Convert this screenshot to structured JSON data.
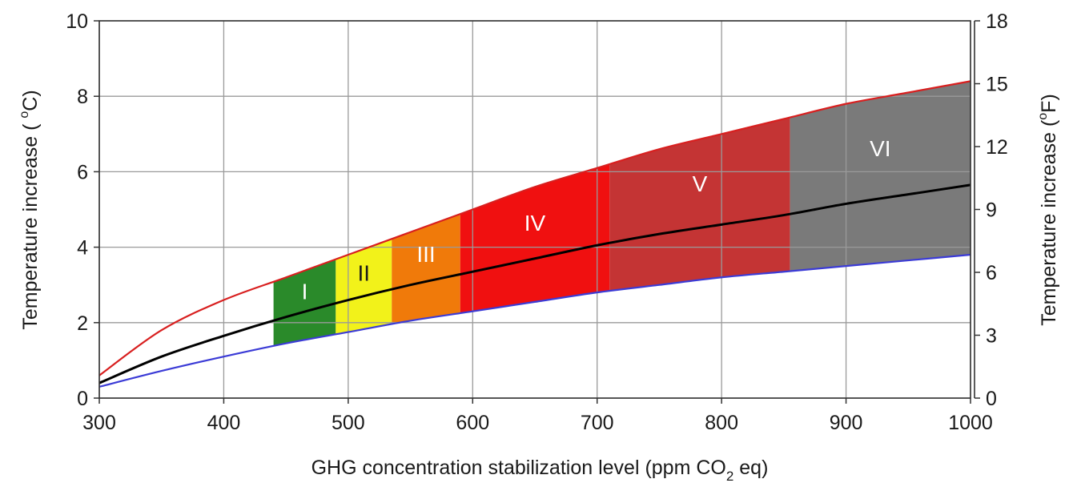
{
  "chart_data": {
    "type": "area",
    "xlabel_parts": [
      "GHG concentration stabilization level (ppm CO",
      "2",
      " eq)"
    ],
    "ylabel_left_parts": [
      "Temperature increase ( ",
      "o",
      "C)"
    ],
    "ylabel_right_parts": [
      "Temperature increase (",
      "o",
      "F)"
    ],
    "xlim": [
      300,
      1000
    ],
    "ylim_left": [
      0,
      10
    ],
    "ylim_right": [
      0,
      18
    ],
    "x_ticks": [
      300,
      400,
      500,
      600,
      700,
      800,
      900,
      1000
    ],
    "y_ticks_left": [
      0,
      2,
      4,
      6,
      8,
      10
    ],
    "y_ticks_right": [
      0,
      3,
      6,
      9,
      12,
      15,
      18
    ],
    "grid": true,
    "x": [
      300,
      350,
      400,
      450,
      500,
      550,
      600,
      650,
      700,
      750,
      800,
      850,
      900,
      950,
      1000
    ],
    "series": [
      {
        "values": [
          0.6,
          1.8,
          2.6,
          3.2,
          3.8,
          4.4,
          5.0,
          5.6,
          6.1,
          6.6,
          7.0,
          7.4,
          7.8,
          8.1,
          8.4
        ],
        "color": "#d81f1f"
      },
      {
        "values": [
          0.4,
          1.1,
          1.65,
          2.15,
          2.6,
          3.0,
          3.35,
          3.7,
          4.05,
          4.35,
          4.6,
          4.85,
          5.15,
          5.4,
          5.65
        ],
        "color": "#000000"
      },
      {
        "values": [
          0.3,
          0.72,
          1.1,
          1.45,
          1.75,
          2.05,
          2.3,
          2.55,
          2.8,
          3.0,
          3.2,
          3.35,
          3.5,
          3.65,
          3.8
        ],
        "color": "#3b3bd6"
      }
    ],
    "bands": [
      {
        "label": "I",
        "x_start": 440,
        "x_end": 490,
        "color": "#2a8a2a",
        "label_color": "#ffffff"
      },
      {
        "label": "II",
        "x_start": 490,
        "x_end": 535,
        "color": "#f2f21a",
        "label_color": "#1a1a1a"
      },
      {
        "label": "III",
        "x_start": 535,
        "x_end": 590,
        "color": "#f07a0a",
        "label_color": "#ffffff"
      },
      {
        "label": "IV",
        "x_start": 590,
        "x_end": 710,
        "color": "#f01010",
        "label_color": "#ffffff"
      },
      {
        "label": "V",
        "x_start": 710,
        "x_end": 855,
        "color": "#c43434",
        "label_color": "#ffffff"
      },
      {
        "label": "VI",
        "x_start": 855,
        "x_end": 1000,
        "color": "#7a7a7a",
        "label_color": "#ffffff"
      }
    ]
  }
}
